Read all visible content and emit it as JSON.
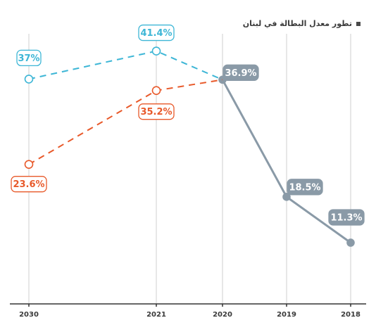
{
  "title": "تطور معدل البطالة في لبنان",
  "colors": {
    "projection_high": "#3db6d6",
    "projection_low": "#e8592a",
    "actual": "#8a9aa7",
    "gridline": "#cfcfcf",
    "axis": "#333333",
    "actual_label_bg": "#8a9aa7"
  },
  "chart_data": {
    "type": "line",
    "categories": [
      "2030",
      "2021",
      "2020",
      "2019",
      "2018"
    ],
    "x_direction": "right-to-left",
    "ylim": [
      5,
      45
    ],
    "grid": "vertical",
    "series": [
      {
        "values": [
          null,
          null,
          36.9,
          18.5,
          11.3
        ],
        "labels": [
          "",
          "",
          "36.9%",
          "18.5%",
          "11.3%"
        ],
        "style": "solid"
      },
      {
        "values": [
          37,
          41.4,
          36.9,
          null,
          null
        ],
        "labels": [
          "37%",
          "41.4%",
          "",
          "",
          ""
        ],
        "style": "dashed"
      },
      {
        "values": [
          23.6,
          35.2,
          36.9,
          null,
          null
        ],
        "labels": [
          "23.6%",
          "35.2%",
          "",
          "",
          ""
        ],
        "style": "dashed"
      }
    ]
  }
}
